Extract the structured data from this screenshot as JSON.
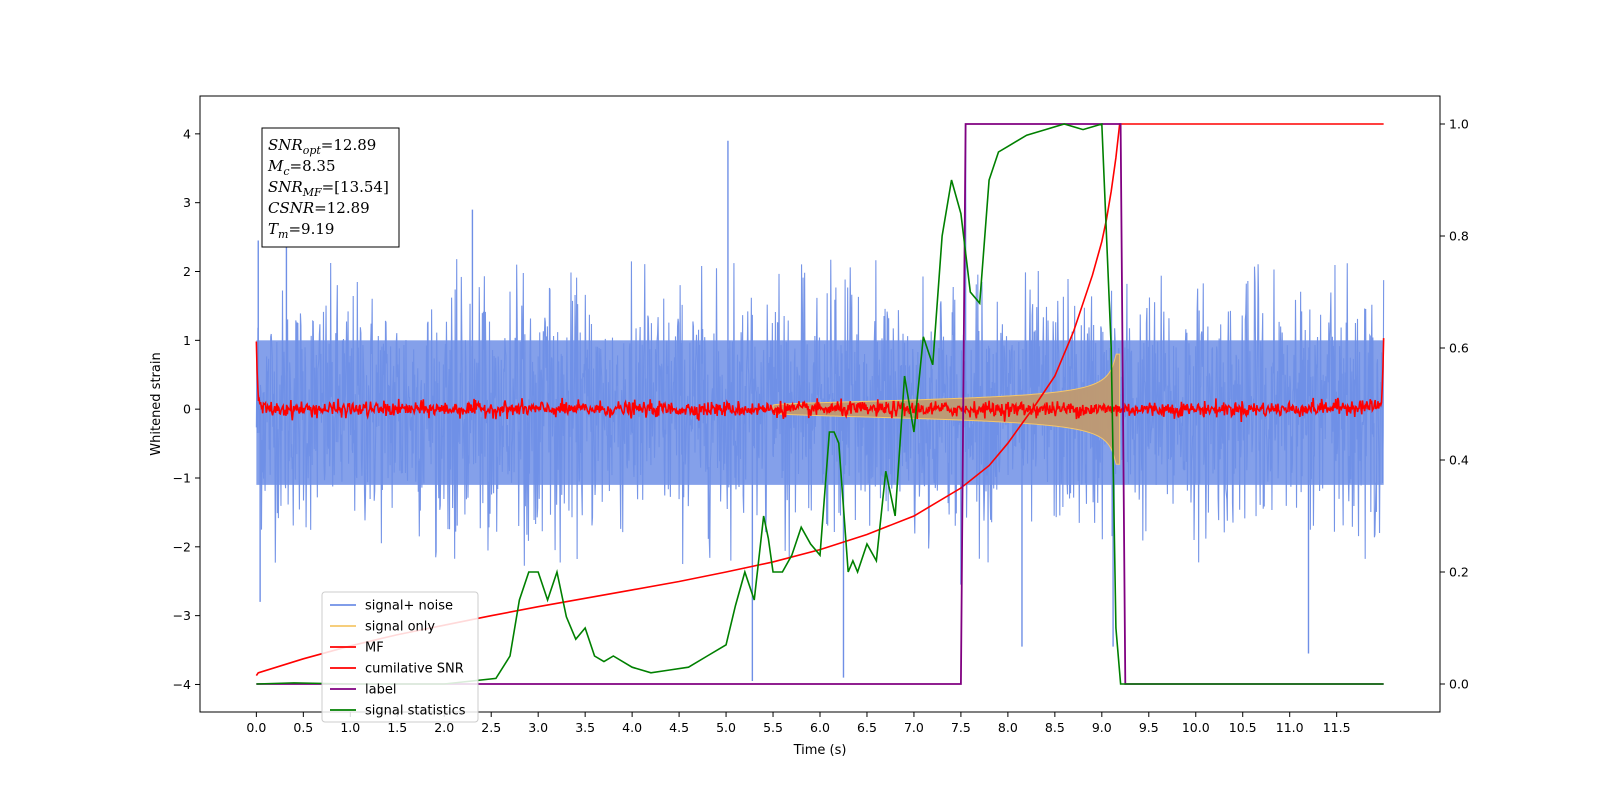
{
  "chart_data": {
    "type": "line",
    "title": "",
    "xlabel": "Time (s)",
    "ylabel_left": "Whitened strain",
    "ylabel_right": "",
    "xlim": [
      -0.6,
      12.6
    ],
    "ylim_left": [
      -4.4,
      4.55
    ],
    "ylim_right": [
      -0.05,
      1.05
    ],
    "x_ticks": [
      0.0,
      0.5,
      1.0,
      1.5,
      2.0,
      2.5,
      3.0,
      3.5,
      4.0,
      4.5,
      5.0,
      5.5,
      6.0,
      6.5,
      7.0,
      7.5,
      8.0,
      8.5,
      9.0,
      9.5,
      10.0,
      10.5,
      11.0,
      11.5
    ],
    "x_tick_labels": [
      "0.0",
      "0.5",
      "1.0",
      "1.5",
      "2.0",
      "2.5",
      "3.0",
      "3.5",
      "4.0",
      "4.5",
      "5.0",
      "5.5",
      "6.0",
      "6.5",
      "7.0",
      "7.5",
      "8.0",
      "8.5",
      "9.0",
      "9.5",
      "10.0",
      "10.5",
      "11.0",
      "11.5"
    ],
    "y_left_ticks": [
      -4,
      -3,
      -2,
      -1,
      0,
      1,
      2,
      3,
      4
    ],
    "y_left_tick_labels": [
      "−4",
      "−3",
      "−2",
      "−1",
      "0",
      "1",
      "2",
      "3",
      "4"
    ],
    "y_right_ticks": [
      0.0,
      0.2,
      0.4,
      0.6,
      0.8,
      1.0
    ],
    "y_right_tick_labels": [
      "0.0",
      "0.2",
      "0.4",
      "0.6",
      "0.8",
      "1.0"
    ],
    "grid": false,
    "legend_position": "lower-left",
    "annotation": {
      "lines": [
        {
          "sym": "SNR",
          "sub": "opt",
          "val": "=12.89"
        },
        {
          "sym": "M",
          "sub": "c",
          "val": "=8.35"
        },
        {
          "sym": "SNR",
          "sub": "MF",
          "val": "=[13.54]"
        },
        {
          "sym": "CSNR",
          "sub": "",
          "val": "=12.89"
        },
        {
          "sym": "T",
          "sub": "m",
          "val": "=9.19"
        }
      ]
    },
    "series": [
      {
        "name": "signal+ noise",
        "axis": "left",
        "kind": "noise_band",
        "color": "#6f8fe6",
        "x_range": [
          0.0,
          12.0
        ],
        "envelope_top": 2.2,
        "envelope_bottom": -2.3,
        "spikes": [
          [
            0.02,
            2.45
          ],
          [
            0.04,
            -2.8
          ],
          [
            0.32,
            2.5
          ],
          [
            2.3,
            2.9
          ],
          [
            5.02,
            3.9
          ],
          [
            5.28,
            -3.95
          ],
          [
            6.25,
            -3.9
          ],
          [
            7.55,
            4.15
          ],
          [
            7.5,
            -2.55
          ],
          [
            9.12,
            -3.45
          ],
          [
            11.2,
            -3.55
          ],
          [
            8.15,
            -3.45
          ]
        ]
      },
      {
        "name": "signal only",
        "axis": "left",
        "kind": "chirp",
        "color": "#f5c76a",
        "x_range": [
          5.5,
          9.19
        ],
        "amplitude_at_merger": 0.8
      },
      {
        "name": "MF",
        "axis": "left",
        "color": "#ff0000",
        "x": [
          0.0,
          0.01,
          0.03,
          0.1,
          1.0,
          2.0,
          3.0,
          4.0,
          5.0,
          6.0,
          7.0,
          8.0,
          9.0,
          10.0,
          11.0,
          11.97,
          11.99,
          12.0
        ],
        "y": [
          1.0,
          0.4,
          0.05,
          0.0,
          0.0,
          0.0,
          0.0,
          0.0,
          0.0,
          0.0,
          0.0,
          0.0,
          0.0,
          0.0,
          0.0,
          0.05,
          0.4,
          1.0
        ]
      },
      {
        "name": "cumilative SNR",
        "axis": "right",
        "color": "#ff0000",
        "x": [
          0.0,
          0.02,
          0.5,
          1.0,
          1.5,
          2.0,
          2.5,
          3.0,
          3.5,
          4.0,
          4.5,
          5.0,
          5.5,
          6.0,
          6.5,
          7.0,
          7.5,
          7.8,
          8.0,
          8.3,
          8.5,
          8.7,
          8.9,
          9.0,
          9.05,
          9.1,
          9.15,
          9.19,
          9.5,
          10.0,
          11.0,
          12.0
        ],
        "y": [
          0.015,
          0.02,
          0.045,
          0.068,
          0.088,
          0.105,
          0.122,
          0.138,
          0.153,
          0.168,
          0.183,
          0.2,
          0.218,
          0.24,
          0.267,
          0.3,
          0.35,
          0.39,
          0.43,
          0.5,
          0.55,
          0.63,
          0.73,
          0.79,
          0.83,
          0.88,
          0.94,
          1.0,
          1.0,
          1.0,
          1.0,
          1.0
        ]
      },
      {
        "name": "label",
        "axis": "right",
        "color": "#800080",
        "x": [
          0.0,
          7.5,
          7.55,
          9.2,
          9.25,
          12.0
        ],
        "y": [
          0.0,
          0.0,
          1.0,
          1.0,
          0.0,
          0.0
        ]
      },
      {
        "name": "signal statistics",
        "axis": "right",
        "color": "#008000",
        "x": [
          0.0,
          0.4,
          1.0,
          2.0,
          2.55,
          2.7,
          2.8,
          2.9,
          3.0,
          3.1,
          3.2,
          3.3,
          3.4,
          3.5,
          3.6,
          3.7,
          3.8,
          4.0,
          4.2,
          4.4,
          4.6,
          4.8,
          5.0,
          5.1,
          5.2,
          5.3,
          5.4,
          5.45,
          5.5,
          5.6,
          5.7,
          5.8,
          5.9,
          6.0,
          6.1,
          6.15,
          6.2,
          6.3,
          6.35,
          6.4,
          6.5,
          6.6,
          6.7,
          6.8,
          6.9,
          7.0,
          7.1,
          7.2,
          7.3,
          7.4,
          7.5,
          7.6,
          7.7,
          7.8,
          7.9,
          8.0,
          8.2,
          8.4,
          8.6,
          8.8,
          9.0,
          9.1,
          9.15,
          9.2,
          9.25,
          10.0,
          11.0,
          12.0
        ],
        "y": [
          0.0,
          0.002,
          0.0,
          0.0,
          0.01,
          0.05,
          0.15,
          0.2,
          0.2,
          0.15,
          0.2,
          0.12,
          0.08,
          0.1,
          0.05,
          0.04,
          0.05,
          0.03,
          0.02,
          0.025,
          0.03,
          0.05,
          0.07,
          0.14,
          0.2,
          0.15,
          0.3,
          0.26,
          0.2,
          0.2,
          0.23,
          0.28,
          0.25,
          0.23,
          0.45,
          0.45,
          0.43,
          0.2,
          0.22,
          0.2,
          0.25,
          0.22,
          0.38,
          0.3,
          0.55,
          0.45,
          0.62,
          0.57,
          0.8,
          0.9,
          0.84,
          0.7,
          0.68,
          0.9,
          0.95,
          0.96,
          0.98,
          0.99,
          1.0,
          0.99,
          1.0,
          0.6,
          0.1,
          0.0,
          0.0,
          0.0,
          0.0,
          0.0
        ]
      }
    ],
    "legend_entries": [
      {
        "label": "signal+ noise",
        "color": "#6f8fe6"
      },
      {
        "label": "signal only",
        "color": "#f5c76a"
      },
      {
        "label": "MF",
        "color": "#ff0000"
      },
      {
        "label": "cumilative SNR",
        "color": "#ff0000"
      },
      {
        "label": "label",
        "color": "#800080"
      },
      {
        "label": "signal statistics",
        "color": "#008000"
      }
    ]
  }
}
